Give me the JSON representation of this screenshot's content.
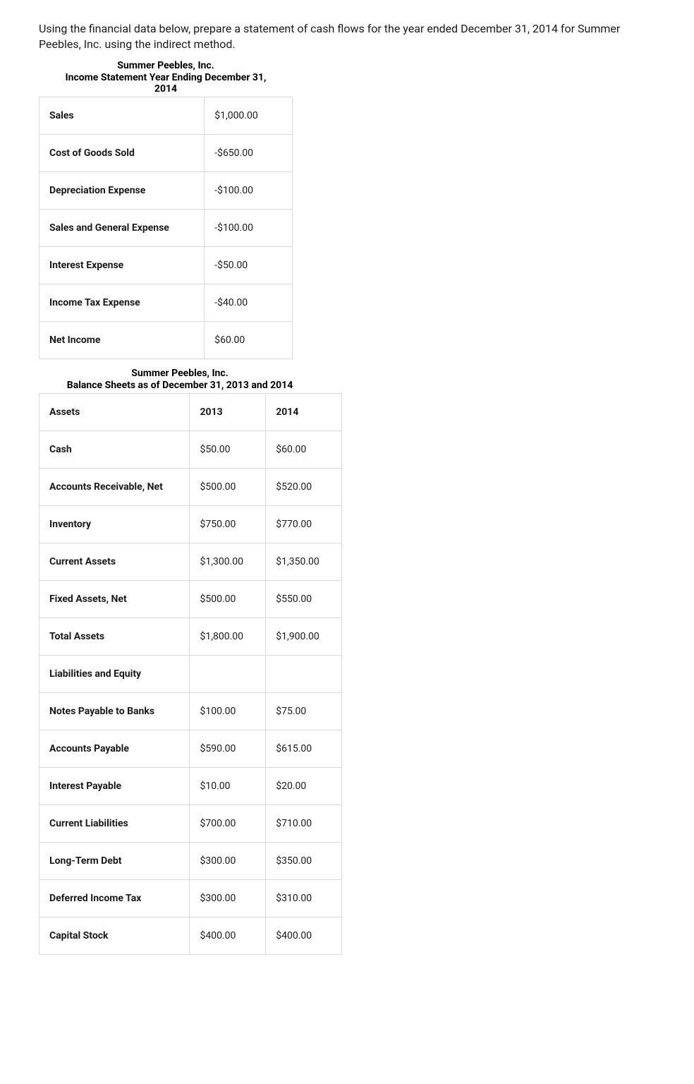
{
  "intro": "Using the financial data below, prepare a statement of cash flows for the year ended December 31, 2014 for Summer Peebles, Inc. using the indirect method.",
  "income_statement": {
    "title_line1": "Summer Peebles, Inc.",
    "title_line2": "Income Statement Year Ending December 31,",
    "title_line3": "2014",
    "rows": [
      {
        "label": "Sales",
        "value": "$1,000.00"
      },
      {
        "label": "Cost of Goods Sold",
        "value": "-$650.00"
      },
      {
        "label": "Depreciation Expense",
        "value": "-$100.00"
      },
      {
        "label": "Sales and General Expense",
        "value": "-$100.00"
      },
      {
        "label": "Interest Expense",
        "value": "-$50.00"
      },
      {
        "label": "Income Tax Expense",
        "value": "-$40.00"
      },
      {
        "label": "Net Income",
        "value": "$60.00"
      }
    ]
  },
  "balance_sheet": {
    "title_line1": "Summer Peebles, Inc.",
    "title_line2": "Balance Sheets as of December 31, 2013 and 2014",
    "header": {
      "col1": "Assets",
      "col2": "2013",
      "col3": "2014"
    },
    "rows": [
      {
        "label": "Cash",
        "y2013": "$50.00",
        "y2014": "$60.00"
      },
      {
        "label": "Accounts Receivable, Net",
        "y2013": "$500.00",
        "y2014": "$520.00"
      },
      {
        "label": "Inventory",
        "y2013": "$750.00",
        "y2014": "$770.00"
      },
      {
        "label": "Current Assets",
        "y2013": "$1,300.00",
        "y2014": "$1,350.00"
      },
      {
        "label": "Fixed Assets, Net",
        "y2013": "$500.00",
        "y2014": "$550.00"
      },
      {
        "label": "Total Assets",
        "y2013": "$1,800.00",
        "y2014": "$1,900.00"
      },
      {
        "label": "Liabilities and Equity",
        "y2013": "",
        "y2014": ""
      },
      {
        "label": "Notes Payable to Banks",
        "y2013": "$100.00",
        "y2014": "$75.00"
      },
      {
        "label": "Accounts Payable",
        "y2013": "$590.00",
        "y2014": "$615.00"
      },
      {
        "label": "Interest Payable",
        "y2013": "$10.00",
        "y2014": "$20.00"
      },
      {
        "label": "Current Liabilities",
        "y2013": "$700.00",
        "y2014": "$710.00"
      },
      {
        "label": "Long-Term Debt",
        "y2013": "$300.00",
        "y2014": "$350.00"
      },
      {
        "label": "Deferred Income Tax",
        "y2013": "$300.00",
        "y2014": "$310.00"
      },
      {
        "label": "Capital Stock",
        "y2013": "$400.00",
        "y2014": "$400.00"
      }
    ]
  },
  "colors": {
    "text": "#1a1a1a",
    "border": "#d9d9d9",
    "background": "#ffffff"
  }
}
